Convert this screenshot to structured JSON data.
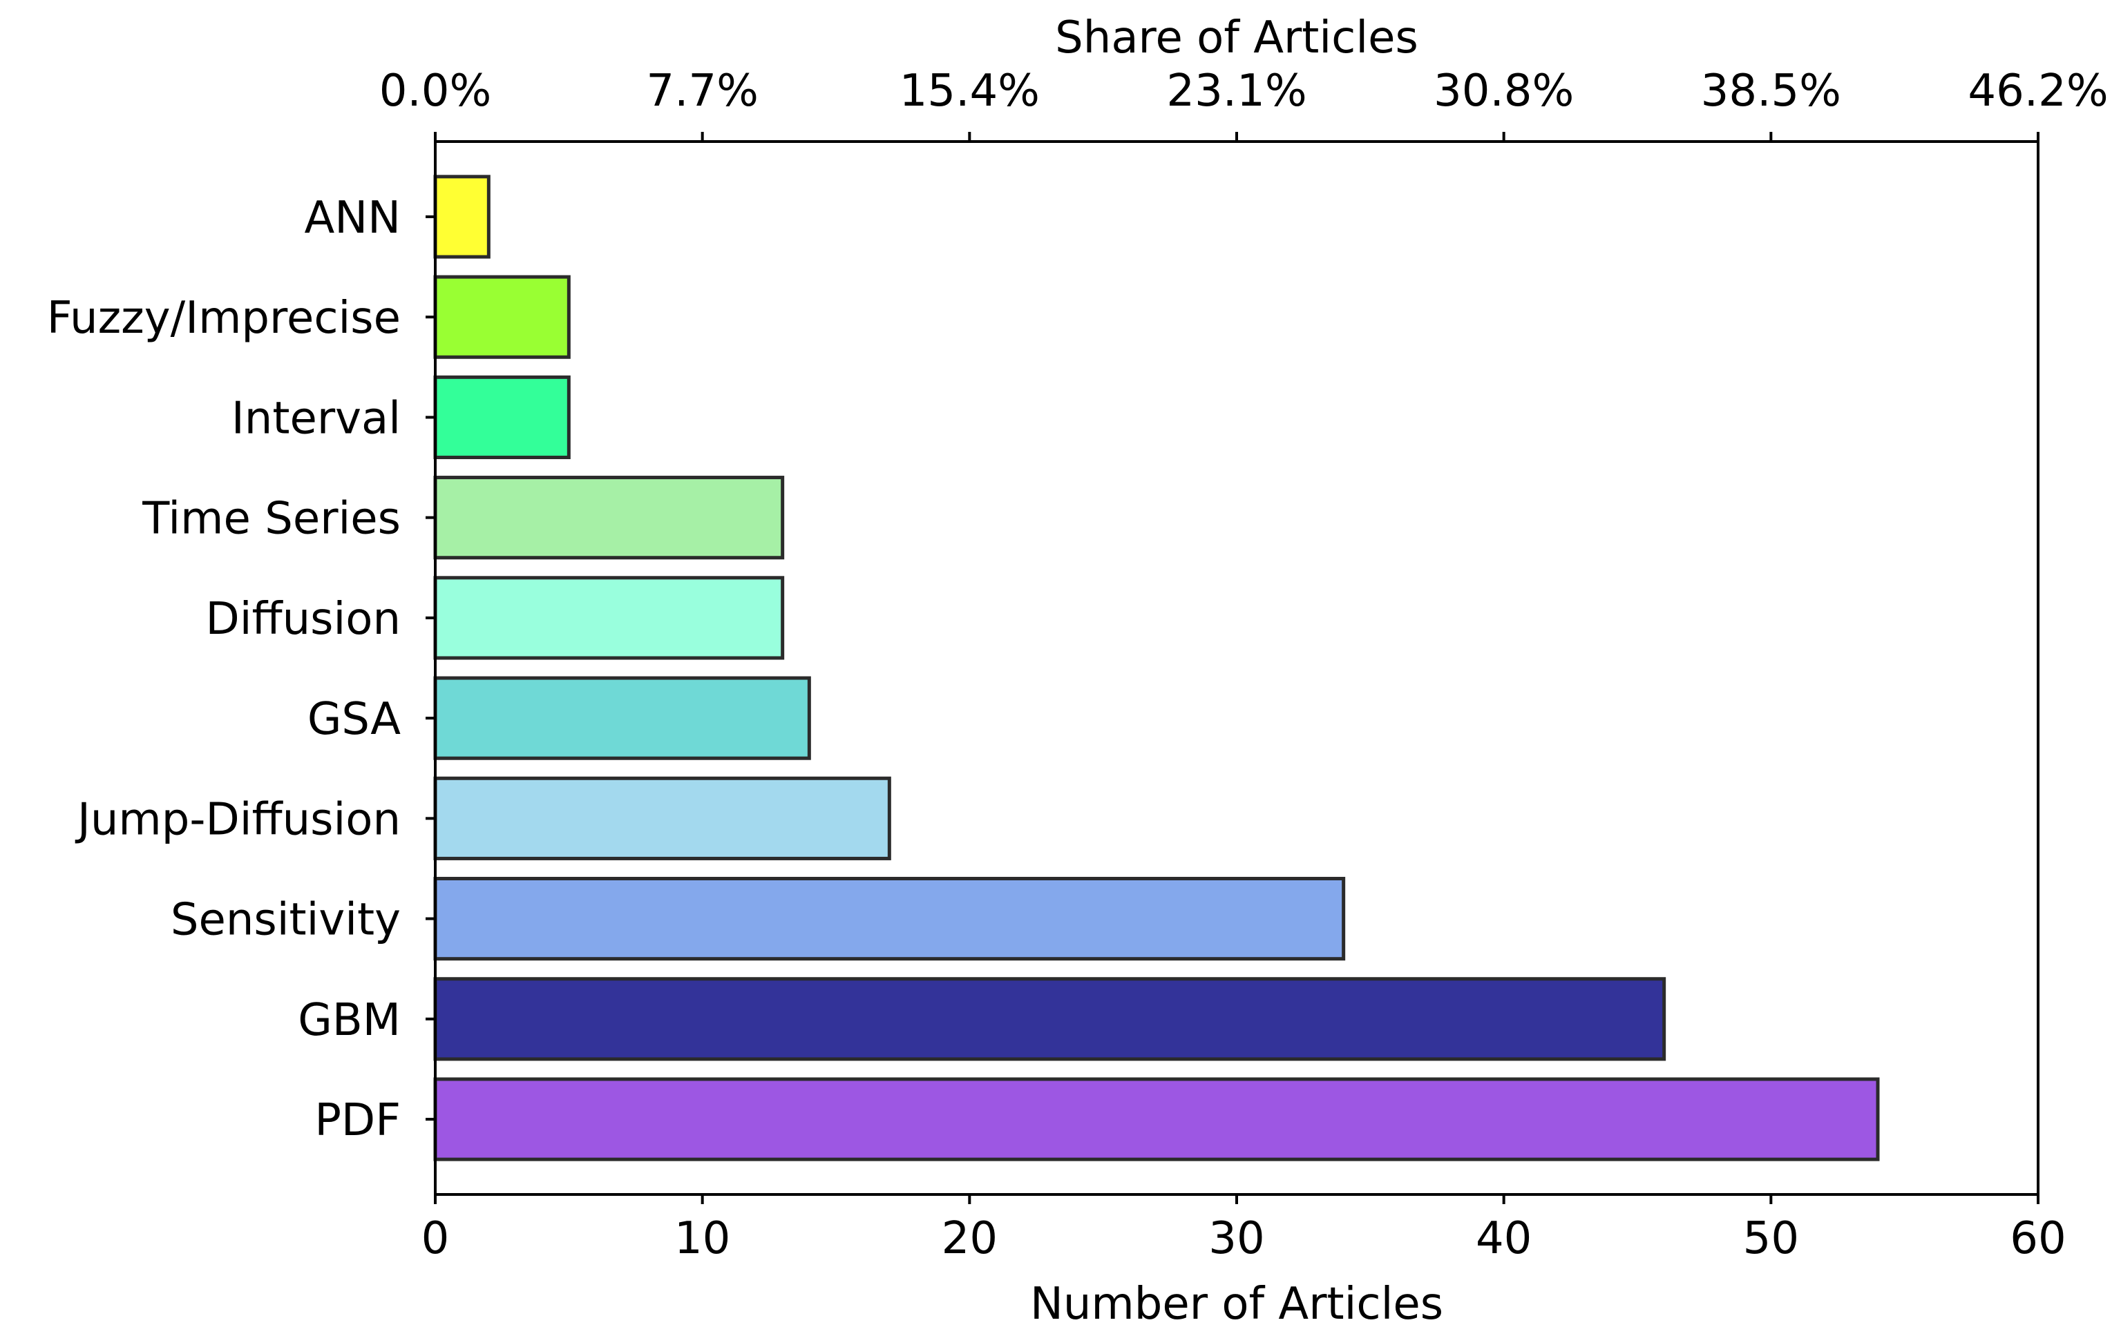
{
  "chart_data": {
    "type": "bar",
    "orientation": "horizontal",
    "categories": [
      "ANN",
      "Fuzzy/Imprecise",
      "Interval",
      "Time Series",
      "Diffusion",
      "GSA",
      "Jump-Diffusion",
      "Sensitivity",
      "GBM",
      "PDF"
    ],
    "values": [
      2,
      5,
      5,
      13,
      13,
      14,
      17,
      34,
      46,
      54
    ],
    "colors": [
      "#FFFF33",
      "#99FF33",
      "#33FF99",
      "#A6F0A6",
      "#99FFDD",
      "#6FD9D6",
      "#A3D9EE",
      "#84A8EC",
      "#333399",
      "#9D57E3"
    ],
    "xlabel": "Number of Articles",
    "xlim": [
      0,
      60
    ],
    "xticks": [
      "0",
      "10",
      "20",
      "30",
      "40",
      "50",
      "60"
    ],
    "secondary_axis": {
      "label": "Share of Articles",
      "ticks": [
        "0.0%",
        "7.7%",
        "15.4%",
        "23.1%",
        "30.8%",
        "38.5%",
        "46.2%"
      ]
    },
    "grid": false,
    "legend": "none"
  }
}
